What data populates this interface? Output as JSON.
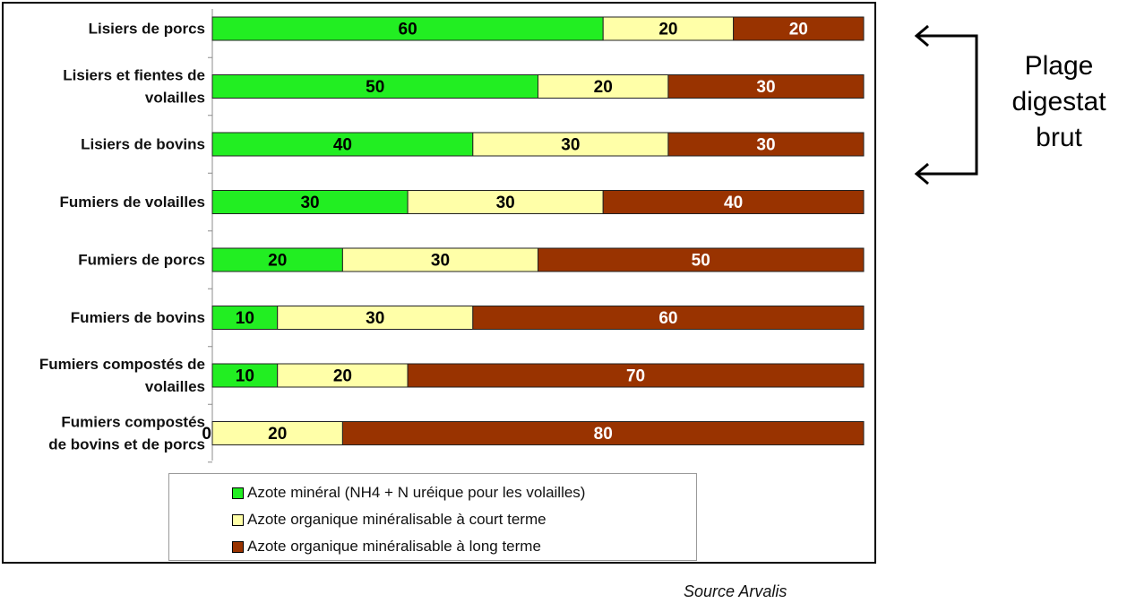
{
  "chart_data": {
    "type": "bar",
    "orientation": "horizontal",
    "stacked": true,
    "categories": [
      [
        "Lisiers de porcs"
      ],
      [
        "Lisiers et fientes de",
        "volailles"
      ],
      [
        "Lisiers de bovins"
      ],
      [
        "Fumiers de volailles"
      ],
      [
        "Fumiers de porcs"
      ],
      [
        "Fumiers de bovins"
      ],
      [
        "Fumiers compostés de",
        "volailles"
      ],
      [
        "Fumiers compostés",
        "de bovins et de porcs"
      ]
    ],
    "series": [
      {
        "name": "Azote minéral (NH4 + N uréique pour les volailles)",
        "color": "#22ee22",
        "text_color": "#000000",
        "values": [
          60,
          50,
          40,
          30,
          20,
          10,
          10,
          0
        ]
      },
      {
        "name": "Azote organique minéralisable à court terme",
        "color": "#ffffa8",
        "text_color": "#000000",
        "values": [
          20,
          20,
          30,
          30,
          30,
          30,
          20,
          20
        ]
      },
      {
        "name": "Azote organique minéralisable à long terme",
        "color": "#993300",
        "text_color": "#ffffff",
        "values": [
          20,
          30,
          30,
          40,
          50,
          60,
          70,
          80
        ]
      }
    ],
    "xlim": [
      0,
      100
    ],
    "grid": false,
    "legend_position": "bottom"
  },
  "annotation": {
    "lines": [
      "Plage",
      "digestat",
      "brut"
    ],
    "spans_categories": [
      "Lisiers de porcs",
      "Lisiers de bovins"
    ]
  },
  "source": "Source Arvalis"
}
